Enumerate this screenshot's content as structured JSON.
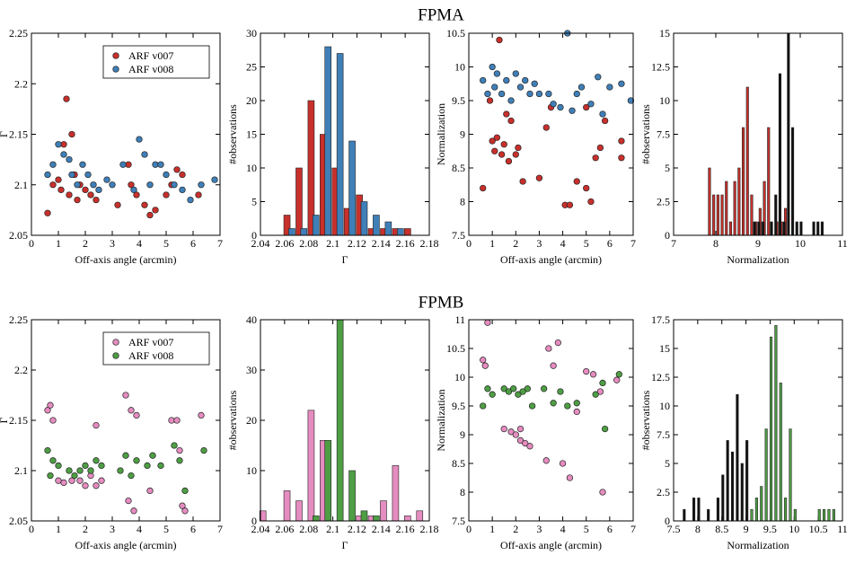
{
  "headings": [
    "FPMA",
    "FPMB"
  ],
  "chart_data": [
    {
      "type": "scatter",
      "xlabel": "Off-axis angle (arcmin)",
      "ylabel": "Γ",
      "xlim": [
        0,
        7
      ],
      "xticks": [
        0,
        1,
        2,
        3,
        4,
        5,
        6,
        7
      ],
      "ylim": [
        2.05,
        2.25
      ],
      "yticks": [
        2.05,
        2.1,
        2.15,
        2.2,
        2.25
      ],
      "legend": "upper right",
      "series": [
        {
          "name": "ARF v007",
          "color": "#c8302c",
          "x": [
            0.6,
            0.8,
            1.0,
            1.1,
            1.2,
            1.3,
            1.4,
            1.5,
            1.6,
            1.7,
            1.8,
            2.0,
            2.2,
            2.4,
            3.2,
            3.6,
            3.7,
            3.9,
            4.2,
            4.4,
            4.6,
            5.0,
            5.2,
            5.4,
            5.6,
            6.2
          ],
          "values": [
            2.072,
            2.1,
            2.105,
            2.095,
            2.14,
            2.185,
            2.09,
            2.15,
            2.11,
            2.085,
            2.1,
            2.095,
            2.09,
            2.085,
            2.08,
            2.12,
            2.1,
            2.09,
            2.08,
            2.07,
            2.075,
            2.09,
            2.1,
            2.115,
            2.11,
            2.09
          ]
        },
        {
          "name": "ARF v008",
          "color": "#3f7fb8",
          "x": [
            0.6,
            0.8,
            1.0,
            1.2,
            1.4,
            1.5,
            1.7,
            1.9,
            2.1,
            2.3,
            2.5,
            2.8,
            3.0,
            3.4,
            3.8,
            4.0,
            4.2,
            4.4,
            4.6,
            4.8,
            5.0,
            5.3,
            5.6,
            5.9,
            6.3,
            6.8
          ],
          "values": [
            2.11,
            2.12,
            2.14,
            2.13,
            2.125,
            2.11,
            2.1,
            2.12,
            2.11,
            2.1,
            2.095,
            2.105,
            2.1,
            2.12,
            2.095,
            2.145,
            2.13,
            2.1,
            2.12,
            2.12,
            2.11,
            2.1,
            2.095,
            2.085,
            2.1,
            2.105
          ]
        }
      ]
    },
    {
      "type": "bar",
      "xlabel": "Γ",
      "ylabel": "#observations",
      "xlim": [
        2.04,
        2.18
      ],
      "xticks": [
        2.04,
        2.06,
        2.08,
        2.1,
        2.12,
        2.14,
        2.16,
        2.18
      ],
      "ylim": [
        0,
        30
      ],
      "yticks": [
        0,
        5,
        10,
        15,
        20,
        25,
        30
      ],
      "series": [
        {
          "color": "#c8302c",
          "x": [
            2.062,
            2.072,
            2.082,
            2.092,
            2.102,
            2.112,
            2.122,
            2.132,
            2.142,
            2.152,
            2.162
          ],
          "values": [
            3,
            10,
            20,
            15,
            10,
            4,
            6,
            1,
            1,
            1,
            1
          ]
        },
        {
          "color": "#3f7fb8",
          "x": [
            2.066,
            2.076,
            2.086,
            2.096,
            2.106,
            2.116,
            2.126,
            2.136,
            2.146,
            2.156
          ],
          "values": [
            1,
            1,
            3,
            28,
            27,
            14,
            5,
            3,
            2,
            1
          ]
        }
      ]
    },
    {
      "type": "scatter",
      "xlabel": "Off-axis angle (arcmin)",
      "ylabel": "Normalization",
      "xlim": [
        0,
        7
      ],
      "xticks": [
        0,
        1,
        2,
        3,
        4,
        5,
        6,
        7
      ],
      "ylim": [
        7.5,
        10.5
      ],
      "yticks": [
        7.5,
        8,
        8.5,
        9,
        9.5,
        10,
        10.5
      ],
      "series": [
        {
          "color": "#c8302c",
          "x": [
            0.6,
            0.9,
            1.0,
            1.1,
            1.2,
            1.3,
            1.4,
            1.5,
            1.6,
            1.7,
            1.8,
            2.0,
            2.1,
            2.3,
            3.0,
            3.3,
            3.5,
            4.1,
            4.3,
            4.6,
            5.0,
            5.0,
            5.2,
            5.4,
            5.6,
            5.8,
            6.5,
            6.5
          ],
          "values": [
            8.2,
            9.5,
            8.9,
            8.75,
            8.95,
            10.4,
            8.7,
            8.85,
            9.3,
            8.6,
            9.2,
            8.7,
            8.8,
            8.3,
            8.35,
            9.1,
            9.4,
            7.95,
            7.95,
            8.3,
            8.2,
            9.4,
            8.0,
            8.65,
            8.8,
            9.2,
            8.9,
            8.65
          ]
        },
        {
          "color": "#3f7fb8",
          "x": [
            0.6,
            0.8,
            1.0,
            1.1,
            1.2,
            1.4,
            1.6,
            1.8,
            2.0,
            2.2,
            2.4,
            2.6,
            2.8,
            3.0,
            3.4,
            3.6,
            3.9,
            4.2,
            4.4,
            4.6,
            4.8,
            5.2,
            5.5,
            5.7,
            6.0,
            6.5,
            6.9
          ],
          "values": [
            9.8,
            9.6,
            10.0,
            9.7,
            9.9,
            9.6,
            9.8,
            9.5,
            9.9,
            9.7,
            9.8,
            9.6,
            9.75,
            9.6,
            9.6,
            9.45,
            9.4,
            10.5,
            9.35,
            9.6,
            9.7,
            9.45,
            9.85,
            9.3,
            9.7,
            9.75,
            9.5
          ]
        }
      ]
    },
    {
      "type": "bar",
      "xlabel": "Normalization",
      "ylabel": "#observations",
      "xlim": [
        7,
        11
      ],
      "xticks": [
        7,
        8,
        9,
        10,
        11
      ],
      "ylim": [
        0,
        15
      ],
      "yticks": [
        0,
        2.5,
        5,
        7.5,
        10,
        12.5,
        15
      ],
      "series": [
        {
          "color": "#c8302c",
          "x": [
            7.85,
            7.95,
            8.05,
            8.15,
            8.25,
            8.35,
            8.45,
            8.55,
            8.65,
            8.75,
            8.85,
            8.95,
            9.05,
            9.15,
            9.25,
            9.45,
            9.55,
            9.65
          ],
          "values": [
            5,
            3,
            3,
            3,
            4,
            1,
            4,
            5,
            8,
            11,
            3,
            1,
            2,
            4,
            8,
            1,
            1,
            2
          ]
        },
        {
          "color": "#111111",
          "x": [
            8.92,
            9.02,
            9.12,
            9.32,
            9.42,
            9.52,
            9.62,
            9.72,
            9.82,
            9.92,
            10.02,
            10.32,
            10.42,
            10.52
          ],
          "values": [
            1,
            1,
            1,
            1,
            3,
            12,
            1,
            15,
            8,
            1,
            1,
            1,
            1,
            1
          ]
        }
      ]
    },
    {
      "type": "scatter",
      "xlabel": "Off-axis angle (arcmin)",
      "ylabel": "Γ",
      "xlim": [
        0,
        7
      ],
      "xticks": [
        0,
        1,
        2,
        3,
        4,
        5,
        6,
        7
      ],
      "ylim": [
        2.05,
        2.25
      ],
      "yticks": [
        2.05,
        2.1,
        2.15,
        2.2,
        2.25
      ],
      "legend": "upper right",
      "series": [
        {
          "name": "ARF v007",
          "color": "#e58cc0",
          "x": [
            0.6,
            0.7,
            0.8,
            1.0,
            1.2,
            1.5,
            1.8,
            2.0,
            2.2,
            2.4,
            2.6,
            3.5,
            3.7,
            3.9,
            3.6,
            3.8,
            4.4,
            5.2,
            5.4,
            5.5,
            5.6,
            5.7,
            6.3,
            2.4
          ],
          "values": [
            2.16,
            2.165,
            2.15,
            2.09,
            2.088,
            2.09,
            2.09,
            2.085,
            2.095,
            2.085,
            2.09,
            2.175,
            2.16,
            2.155,
            2.07,
            2.06,
            2.08,
            2.15,
            2.15,
            2.12,
            2.065,
            2.06,
            2.155,
            2.145
          ]
        },
        {
          "name": "ARF v008",
          "color": "#4e9e44",
          "x": [
            0.6,
            0.7,
            0.8,
            1.0,
            1.4,
            1.6,
            1.8,
            2.0,
            2.2,
            2.4,
            2.6,
            3.3,
            3.5,
            3.7,
            3.9,
            4.3,
            4.5,
            4.8,
            5.3,
            5.5,
            5.7,
            6.4
          ],
          "values": [
            2.12,
            2.095,
            2.11,
            2.105,
            2.1,
            2.095,
            2.1,
            2.105,
            2.1,
            2.11,
            2.105,
            2.1,
            2.115,
            2.095,
            2.11,
            2.105,
            2.115,
            2.105,
            2.125,
            2.11,
            2.08,
            2.12
          ]
        }
      ]
    },
    {
      "type": "bar",
      "xlabel": "Γ",
      "ylabel": "#observations",
      "xlim": [
        2.04,
        2.18
      ],
      "xticks": [
        2.04,
        2.06,
        2.08,
        2.1,
        2.12,
        2.14,
        2.16,
        2.18
      ],
      "ylim": [
        0,
        40
      ],
      "yticks": [
        0,
        10,
        20,
        30,
        40
      ],
      "series": [
        {
          "color": "#e58cc0",
          "x": [
            2.042,
            2.062,
            2.072,
            2.082,
            2.092,
            2.122,
            2.132,
            2.142,
            2.152,
            2.162,
            2.172
          ],
          "values": [
            2,
            6,
            4,
            22,
            16,
            1,
            1,
            4,
            11,
            1,
            2
          ]
        },
        {
          "color": "#4e9e44",
          "x": [
            2.086,
            2.096,
            2.106,
            2.116,
            2.126,
            2.136
          ],
          "values": [
            1,
            16,
            40,
            10,
            2,
            1
          ]
        }
      ]
    },
    {
      "type": "scatter",
      "xlabel": "Off-axis angle (arcmin)",
      "ylabel": "Normalization",
      "xlim": [
        0,
        7
      ],
      "xticks": [
        0,
        1,
        2,
        3,
        4,
        5,
        6,
        7
      ],
      "ylim": [
        7.5,
        11
      ],
      "yticks": [
        7.5,
        8,
        8.5,
        9,
        9.5,
        10,
        10.5,
        11
      ],
      "series": [
        {
          "color": "#e58cc0",
          "x": [
            0.6,
            0.7,
            0.8,
            1.5,
            1.8,
            2.0,
            2.2,
            2.4,
            2.6,
            2.2,
            3.3,
            3.4,
            3.6,
            3.8,
            4.0,
            4.3,
            4.6,
            5.0,
            5.3,
            5.6,
            5.7,
            6.3
          ],
          "values": [
            10.3,
            10.2,
            10.95,
            9.1,
            9.05,
            9.0,
            8.9,
            8.85,
            8.8,
            9.1,
            8.55,
            10.5,
            10.2,
            10.6,
            8.5,
            8.25,
            9.4,
            10.1,
            10.05,
            9.75,
            8.0,
            9.95
          ]
        },
        {
          "color": "#4e9e44",
          "x": [
            0.6,
            0.8,
            1.0,
            1.5,
            1.7,
            1.9,
            2.1,
            2.3,
            2.5,
            2.7,
            3.2,
            3.6,
            3.9,
            4.2,
            4.6,
            5.4,
            5.7,
            5.8,
            6.4
          ],
          "values": [
            9.5,
            9.8,
            9.7,
            9.8,
            9.75,
            9.8,
            9.7,
            9.75,
            9.8,
            9.5,
            9.8,
            9.55,
            9.75,
            9.5,
            9.55,
            9.7,
            9.9,
            9.1,
            10.05
          ]
        }
      ]
    },
    {
      "type": "bar",
      "xlabel": "Normalization",
      "ylabel": "#observations",
      "xlim": [
        7.5,
        11
      ],
      "xticks": [
        7.5,
        8,
        8.5,
        9,
        9.5,
        10,
        10.5,
        11
      ],
      "ylim": [
        0,
        17.5
      ],
      "yticks": [
        0,
        2.5,
        5,
        7.5,
        10,
        12.5,
        15,
        17.5
      ],
      "series": [
        {
          "color": "#111111",
          "x": [
            7.72,
            7.92,
            8.02,
            8.22,
            8.42,
            8.52,
            8.62,
            8.72,
            8.82,
            8.92,
            9.02
          ],
          "values": [
            1,
            2,
            2,
            1,
            2,
            4,
            7,
            6,
            11,
            5,
            7
          ]
        },
        {
          "color": "#4e9e44",
          "x": [
            9.12,
            9.22,
            9.32,
            9.42,
            9.52,
            9.62,
            9.72,
            9.82,
            9.92,
            10.02,
            10.52,
            10.62,
            10.72,
            10.82
          ],
          "values": [
            1,
            2,
            3,
            8,
            16,
            17,
            12,
            2,
            8,
            1,
            1,
            1,
            1,
            1
          ]
        }
      ]
    }
  ]
}
